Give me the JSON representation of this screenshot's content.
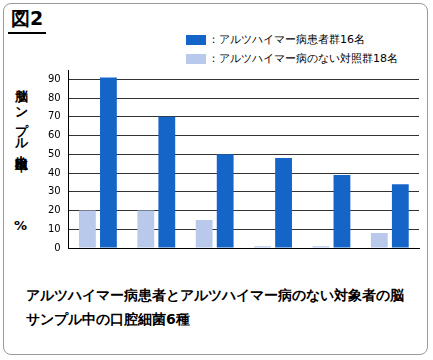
{
  "chart_data": {
    "type": "bar",
    "title": "図2",
    "caption": "アルツハイマー病患者とアルツハイマー病のない対象者の脳サンプル中の口腔細菌6種",
    "ylabel": "脳サンプル中検出率",
    "y_unit": "%",
    "categories": [
      null,
      null,
      null,
      null,
      null,
      null
    ],
    "series": [
      {
        "name": "：アルツハイマー病患者群16名",
        "color": "#1565c8",
        "values": [
          91,
          70,
          50,
          48,
          39,
          34
        ]
      },
      {
        "name": "：アルツハイマー病のない対照群18名",
        "color": "#b9c9ec",
        "values": [
          20,
          20,
          15,
          1,
          1,
          8
        ]
      }
    ],
    "ylim": [
      0,
      95
    ],
    "yticks": [
      0,
      10,
      20,
      30,
      40,
      50,
      60,
      70,
      80,
      90
    ],
    "grid": true,
    "legend": "top-right",
    "tick_labels": "y"
  }
}
